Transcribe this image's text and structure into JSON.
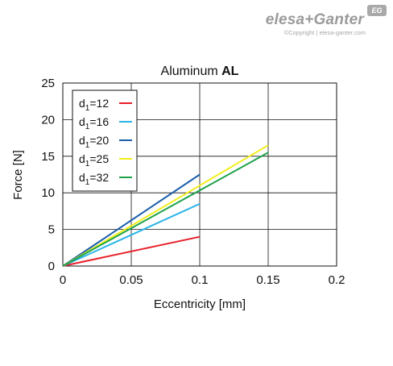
{
  "branding": {
    "logo": "elesa+Ganter",
    "copyright": "©Copyright | elesa-ganter.com",
    "badge": "EG"
  },
  "chart_data": {
    "type": "line",
    "title_prefix": "Aluminum ",
    "title_bold": "AL",
    "xlabel": "Eccentricity [mm]",
    "ylabel": "Force [N]",
    "xlim": [
      0,
      0.2
    ],
    "ylim": [
      0,
      25
    ],
    "xticks": [
      0,
      0.05,
      0.1,
      0.15,
      0.2
    ],
    "xtick_labels": [
      "0",
      "0.05",
      "0.1",
      "0.15",
      "0.2"
    ],
    "yticks": [
      0,
      5,
      10,
      15,
      20,
      25
    ],
    "ytick_labels": [
      "0",
      "5",
      "10",
      "15",
      "20",
      "25"
    ],
    "grid": true,
    "legend_position": "top-left",
    "series": [
      {
        "name": "d1=12",
        "label_base": "d",
        "label_sub": "1",
        "label_rest": "=12",
        "color": "#e8202a",
        "x": [
          0,
          0.1
        ],
        "y": [
          0,
          4
        ]
      },
      {
        "name": "d1=16",
        "label_base": "d",
        "label_sub": "1",
        "label_rest": "=16",
        "color": "#2ab4e8",
        "x": [
          0,
          0.1
        ],
        "y": [
          0,
          8.5
        ]
      },
      {
        "name": "d1=20",
        "label_base": "d",
        "label_sub": "1",
        "label_rest": "=20",
        "color": "#1a5ea8",
        "x": [
          0,
          0.1
        ],
        "y": [
          0,
          12.5
        ]
      },
      {
        "name": "d1=25",
        "label_base": "d",
        "label_sub": "1",
        "label_rest": "=25",
        "color": "#f2ee1c",
        "x": [
          0,
          0.15
        ],
        "y": [
          0,
          16.5
        ]
      },
      {
        "name": "d1=32",
        "label_base": "d",
        "label_sub": "1",
        "label_rest": "=32",
        "color": "#1fa34a",
        "x": [
          0,
          0.15
        ],
        "y": [
          0,
          15.5
        ]
      }
    ]
  }
}
